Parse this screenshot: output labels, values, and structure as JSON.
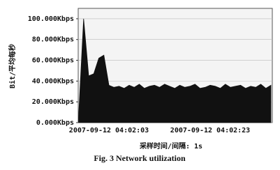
{
  "chart_data": {
    "type": "area",
    "y_label": "Bit/平均每秒",
    "x_label": "采样时间/间隔: 1s",
    "caption": "Fig. 3   Network utilization",
    "categories": [
      null,
      null,
      null,
      null,
      null,
      null,
      "2007-09-12 04:02:03",
      null,
      null,
      null,
      null,
      null,
      null,
      null,
      null,
      null,
      null,
      null,
      null,
      null,
      null,
      null,
      null,
      null,
      null,
      null,
      "2007-09-12 04:02:23",
      null,
      null,
      null,
      null,
      null,
      null,
      null,
      null,
      null,
      null,
      null,
      null
    ],
    "values": [
      5,
      100,
      45,
      47,
      62,
      65,
      36,
      34,
      35,
      33,
      36,
      34,
      37,
      33,
      35,
      36,
      34,
      37,
      35,
      33,
      36,
      34,
      35,
      37,
      33,
      34,
      36,
      35,
      33,
      37,
      34,
      35,
      36,
      33,
      35,
      34,
      37,
      33,
      36
    ],
    "color": "#111111",
    "ylim": [
      0,
      110
    ],
    "yticks": [
      {
        "value": 0,
        "label": "0.000Kbps"
      },
      {
        "value": 20,
        "label": "20.000Kbps"
      },
      {
        "value": 40,
        "label": "40.000Kbps"
      },
      {
        "value": 60,
        "label": "60.000Kbps"
      },
      {
        "value": 80,
        "label": "80.000Kbps"
      },
      {
        "value": 100,
        "label": "100.000Kbps"
      }
    ],
    "grid": true
  }
}
